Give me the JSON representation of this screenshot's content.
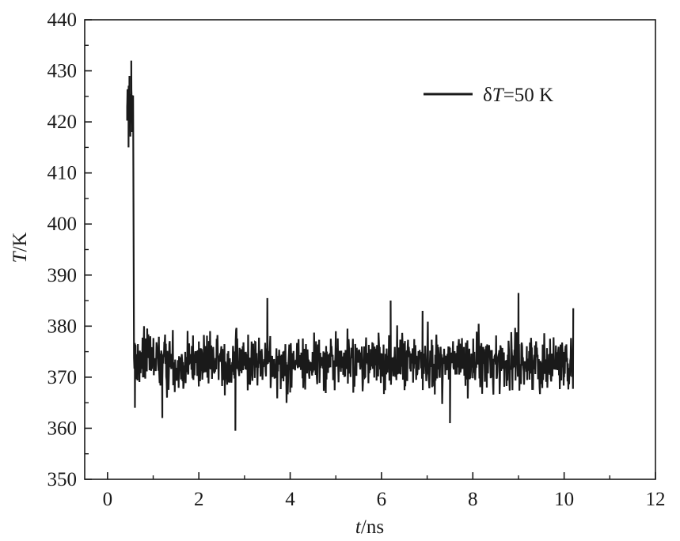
{
  "chart_data": {
    "type": "line",
    "title": "",
    "xlabel_italic": "t",
    "xlabel_unit": "/ns",
    "ylabel_italic": "T",
    "ylabel_unit": "/K",
    "xlim": [
      -0.5,
      12
    ],
    "ylim": [
      350,
      440
    ],
    "xticks": [
      0,
      2,
      4,
      6,
      8,
      10,
      12
    ],
    "yticks": [
      350,
      360,
      370,
      380,
      390,
      400,
      410,
      420,
      430,
      440
    ],
    "grid": false,
    "legend_placement": "top-right",
    "line_color": "#1a1a1a",
    "series": [
      {
        "name_prefix": "δ",
        "name_italic": "T",
        "name_suffix": "=50 K",
        "x_start": 0.43,
        "x_drop": 0.56,
        "x_end": 10.2,
        "pre_drop_mean": 423,
        "pre_drop_min": 415,
        "pre_drop_max": 432,
        "steady_mean": 373,
        "steady_min": 359.5,
        "steady_max": 386.5,
        "samples_shown": [
          [
            0.43,
            423
          ],
          [
            0.45,
            426
          ],
          [
            0.46,
            415
          ],
          [
            0.48,
            429
          ],
          [
            0.5,
            419
          ],
          [
            0.52,
            432
          ],
          [
            0.54,
            418
          ],
          [
            0.56,
            425
          ],
          [
            0.6,
            364
          ],
          [
            0.8,
            380
          ],
          [
            1.2,
            362
          ],
          [
            2.0,
            377
          ],
          [
            2.8,
            359.5
          ],
          [
            3.5,
            385.5
          ],
          [
            4.0,
            367
          ],
          [
            5.0,
            379
          ],
          [
            6.2,
            385
          ],
          [
            6.9,
            383
          ],
          [
            7.5,
            361
          ],
          [
            8.0,
            373
          ],
          [
            9.0,
            386.5
          ],
          [
            10.0,
            370
          ],
          [
            10.2,
            383.5
          ]
        ]
      }
    ]
  }
}
